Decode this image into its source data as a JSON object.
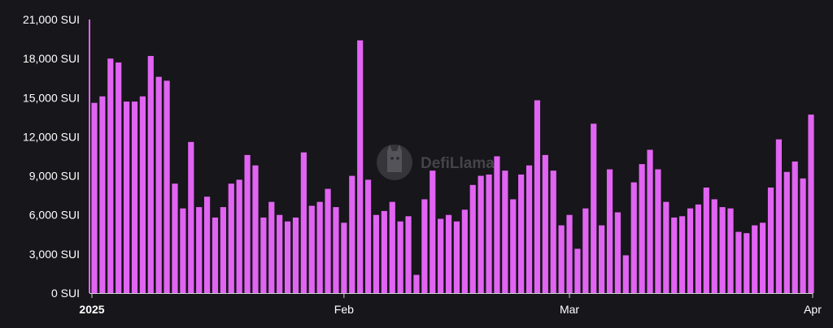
{
  "watermark": {
    "text": "DefiLlama",
    "icon": "llama-logo-icon"
  },
  "chart_data": {
    "type": "bar",
    "title": "",
    "xlabel": "",
    "ylabel": "",
    "unit": "SUI",
    "ylim": [
      0,
      21000
    ],
    "y_ticks": [
      "21,000 SUI",
      "18,000 SUI",
      "15,000 SUI",
      "12,000 SUI",
      "9,000 SUI",
      "6,000 SUI",
      "3,000 SUI",
      "0 SUI"
    ],
    "y_tick_values": [
      21000,
      18000,
      15000,
      12000,
      9000,
      6000,
      3000,
      0
    ],
    "x_ticks": [
      {
        "label": "2025",
        "index": 0,
        "bold": true
      },
      {
        "label": "Feb",
        "index": 31,
        "bold": false
      },
      {
        "label": "Mar",
        "index": 59,
        "bold": false
      },
      {
        "label": "Apr",
        "index": 90,
        "bold": false
      }
    ],
    "series": [
      {
        "color": "#e164f2",
        "values": [
          14600,
          15100,
          18000,
          17700,
          14700,
          14700,
          15100,
          18200,
          16600,
          16300,
          8400,
          6500,
          11600,
          6600,
          7400,
          5800,
          6600,
          8400,
          8700,
          10600,
          9800,
          5800,
          7000,
          6000,
          5500,
          5800,
          10800,
          6700,
          7000,
          8000,
          6600,
          5400,
          9000,
          19400,
          8700,
          6000,
          6300,
          7000,
          5500,
          5900,
          1400,
          7200,
          9400,
          5700,
          6000,
          5500,
          6400,
          8300,
          9000,
          9100,
          10500,
          9400,
          7200,
          9100,
          9800,
          14800,
          10600,
          9400,
          5200,
          6000,
          3400,
          6500,
          13000,
          5200,
          9500,
          6200,
          2900,
          8500,
          9900,
          11000,
          9500,
          7000,
          5800,
          5900,
          6500,
          6800,
          8100,
          7200,
          6600,
          6500,
          4700,
          4600,
          5200,
          5400,
          8100,
          11800,
          9300,
          10100,
          8800,
          13700
        ]
      }
    ]
  }
}
